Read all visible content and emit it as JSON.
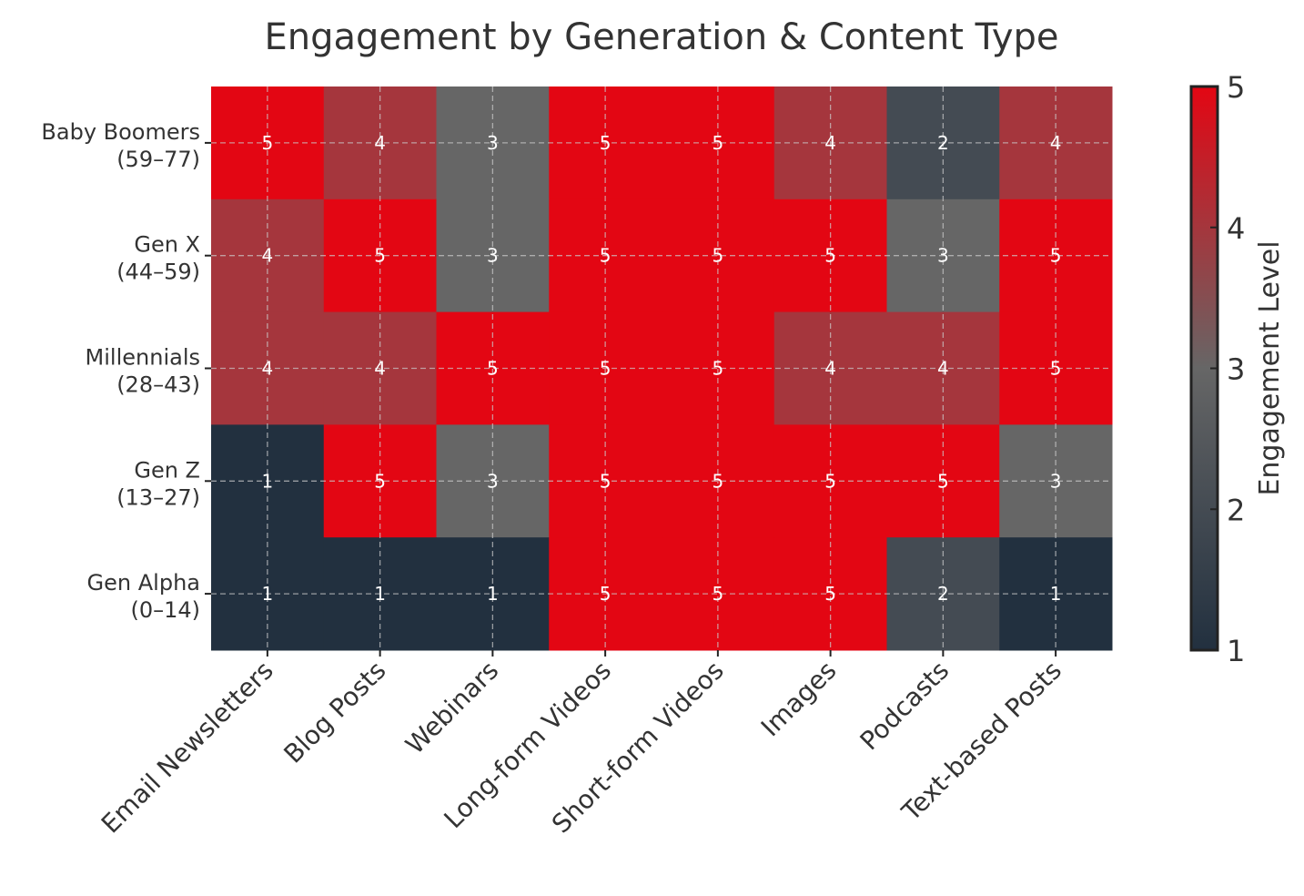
{
  "chart_data": {
    "type": "heatmap",
    "title": "Engagement by Generation & Content Type",
    "xlabel": "",
    "ylabel": "",
    "columns": [
      "Email Newsletters",
      "Blog Posts",
      "Webinars",
      "Long-form Videos",
      "Short-form Videos",
      "Images",
      "Podcasts",
      "Text-based Posts"
    ],
    "rows": [
      {
        "label": [
          "Baby Boomers",
          "(59–77)"
        ],
        "values": [
          5,
          4,
          3,
          5,
          5,
          4,
          2,
          4
        ]
      },
      {
        "label": [
          "Gen X",
          "(44–59)"
        ],
        "values": [
          4,
          5,
          3,
          5,
          5,
          5,
          3,
          5
        ]
      },
      {
        "label": [
          "Millennials",
          "(28–43)"
        ],
        "values": [
          4,
          4,
          5,
          5,
          5,
          4,
          4,
          5
        ]
      },
      {
        "label": [
          "Gen Z",
          "(13–27)"
        ],
        "values": [
          1,
          5,
          3,
          5,
          5,
          5,
          5,
          3
        ]
      },
      {
        "label": [
          "Gen Alpha",
          "(0–14)"
        ],
        "values": [
          1,
          1,
          1,
          5,
          5,
          5,
          2,
          1
        ]
      }
    ],
    "colorbar": {
      "label": "Engagement Level",
      "range": [
        1,
        5
      ],
      "ticks": [
        "1",
        "2",
        "3",
        "4",
        "5"
      ],
      "colors": [
        "#22303f",
        "#666666",
        "#e30613"
      ]
    },
    "grid": true,
    "annotations": true
  }
}
